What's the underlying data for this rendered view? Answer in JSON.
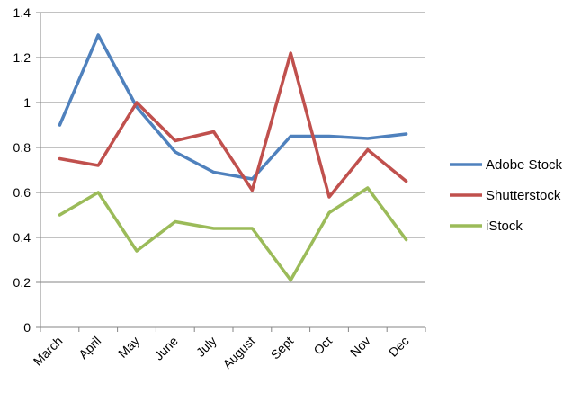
{
  "chart_data": {
    "type": "line",
    "categories": [
      "March",
      "April",
      "May",
      "June",
      "July",
      "August",
      "Sept",
      "Oct",
      "Nov",
      "Dec"
    ],
    "series": [
      {
        "name": "Adobe Stock",
        "color": "#4F81BD",
        "values": [
          0.9,
          1.3,
          0.98,
          0.78,
          0.69,
          0.66,
          0.85,
          0.85,
          0.84,
          0.86
        ]
      },
      {
        "name": "Shutterstock",
        "color": "#C0504D",
        "values": [
          0.75,
          0.72,
          1.0,
          0.83,
          0.87,
          0.61,
          1.22,
          0.58,
          0.79,
          0.65
        ]
      },
      {
        "name": "iStock",
        "color": "#9BBB59",
        "values": [
          0.5,
          0.6,
          0.34,
          0.47,
          0.44,
          0.44,
          0.21,
          0.51,
          0.62,
          0.39
        ]
      }
    ],
    "yticks": [
      "0",
      "0.2",
      "0.4",
      "0.6",
      "0.8",
      "1",
      "1.2",
      "1.4"
    ],
    "ylim": [
      0,
      1.4
    ],
    "grid": true,
    "legend": "right"
  }
}
